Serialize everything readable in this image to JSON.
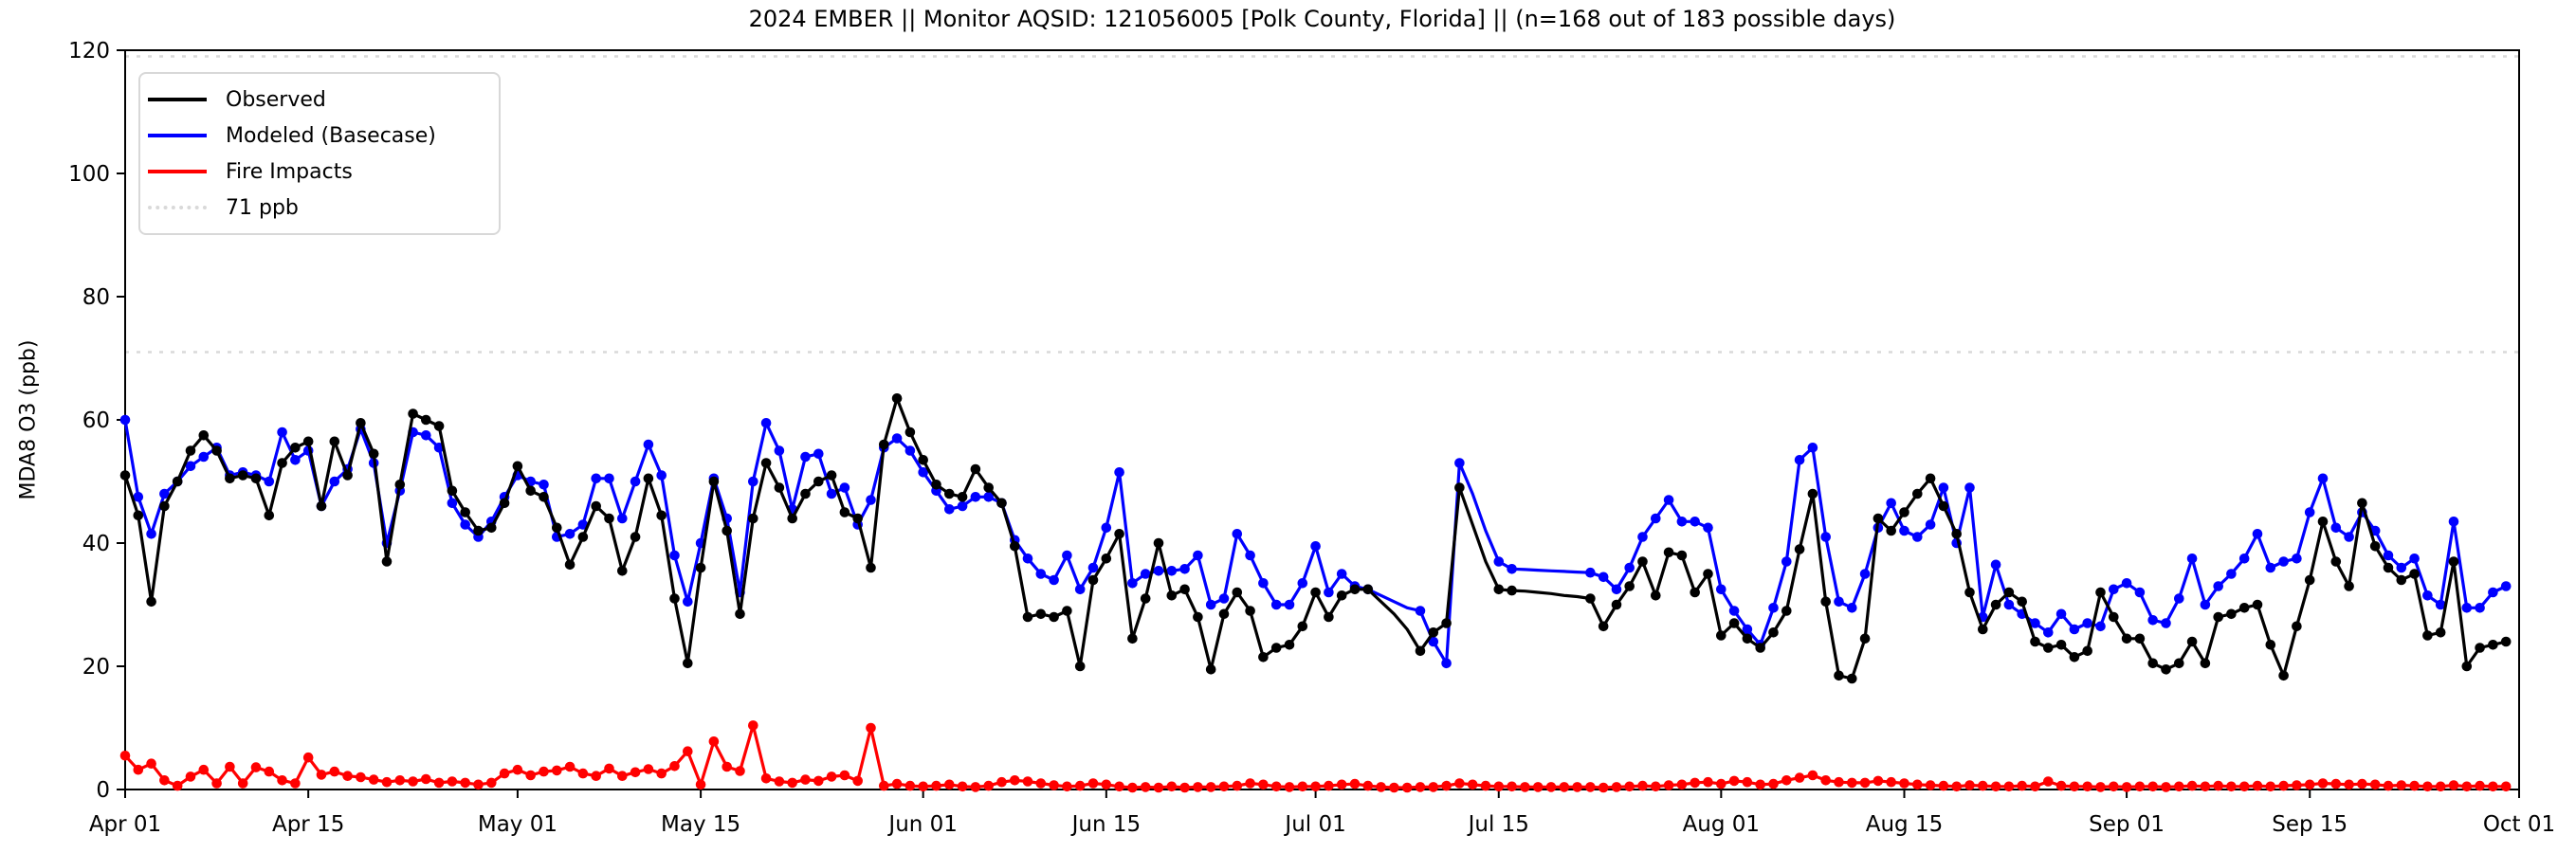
{
  "header": {
    "title": "2024 EMBER || Monitor AQSID: 121056005 [Polk County, Florida] || (n=168 out of 183 possible days)"
  },
  "chart_data": {
    "type": "line",
    "title": "2024 EMBER || Monitor AQSID: 121056005 [Polk County, Florida] || (n=168 out of 183 possible days)",
    "xlabel": "",
    "ylabel": "MDA8 O3 (ppb)",
    "ylim": [
      0,
      120
    ],
    "y_ticks": [
      0,
      20,
      40,
      60,
      80,
      100,
      120
    ],
    "num_days": 183,
    "x_tick_days": [
      0,
      14,
      30,
      44,
      61,
      75,
      91,
      105,
      122,
      136,
      153,
      167,
      183
    ],
    "x_tick_labels": [
      "Apr 01",
      "Apr 15",
      "May 01",
      "May 15",
      "Jun 01",
      "Jun 15",
      "Jul 01",
      "Jul 15",
      "Aug 01",
      "Aug 15",
      "Sep 01",
      "Sep 15",
      "Oct 01"
    ],
    "grid": false,
    "legend_position": "upper left",
    "legend": [
      {
        "label": "Observed",
        "color": "#000000",
        "style": "solid"
      },
      {
        "label": "Modeled (Basecase)",
        "color": "#0000ff",
        "style": "solid"
      },
      {
        "label": "Fire Impacts",
        "color": "#ff0000",
        "style": "solid"
      },
      {
        "label": "71 ppb",
        "color": "#d9d9d9",
        "style": "dotted"
      }
    ],
    "reference_lines": [
      {
        "label": "71 ppb",
        "value": 71,
        "color": "#d9d9d9",
        "style": "dotted"
      },
      {
        "label": "",
        "value": 119,
        "color": "#d9d9d9",
        "style": "dotted"
      }
    ],
    "interpolated_days": [
      96,
      97,
      98,
      103,
      104,
      107,
      108,
      109,
      110,
      111
    ],
    "series": [
      {
        "name": "Observed",
        "color": "#000000",
        "values": [
          51,
          44.5,
          30.5,
          46,
          50,
          55,
          57.5,
          55,
          50.5,
          51,
          50.5,
          44.5,
          53,
          55.5,
          56.5,
          46,
          56.5,
          51,
          59.5,
          54.5,
          37,
          49.5,
          61,
          60,
          59,
          48.5,
          45,
          42,
          42.5,
          46.5,
          52.5,
          48.5,
          47.5,
          42.5,
          36.5,
          41,
          46,
          44,
          35.5,
          41,
          50.5,
          44.5,
          31,
          20.5,
          36,
          50,
          42,
          28.5,
          44,
          53,
          49,
          44,
          48,
          50,
          51,
          45,
          44,
          36,
          56,
          63.5,
          58,
          53.5,
          49.5,
          48,
          47.5,
          52,
          49,
          46.5,
          39.5,
          28,
          28.5,
          28,
          29,
          20,
          34,
          37.5,
          41.5,
          24.5,
          31,
          40,
          31.5,
          32.5,
          28,
          19.5,
          28.5,
          32,
          29,
          21.5,
          23,
          23.5,
          26.5,
          32,
          28,
          31.5,
          32.5,
          32.5,
          30.5,
          28.5,
          26,
          22.5,
          25.5,
          27,
          49,
          43,
          37,
          32.5,
          32.3,
          32.2,
          32,
          31.8,
          31.5,
          31.3,
          31,
          26.5,
          30,
          33,
          37,
          31.5,
          38.5,
          38,
          32,
          35,
          25,
          27,
          24.5,
          23,
          25.5,
          29,
          39,
          48,
          30.5,
          18.5,
          18,
          24.5,
          44,
          42,
          45,
          48,
          50.5,
          46,
          41.5,
          32,
          26,
          30,
          32,
          30.5,
          24,
          23,
          23.5,
          21.5,
          22.5,
          32,
          28,
          24.5,
          24.5,
          20.5,
          19.5,
          20.5,
          24,
          20.5,
          28,
          28.5,
          29.5,
          30,
          23.5,
          18.5,
          26.5,
          34,
          43.5,
          37,
          33,
          46.5,
          39.5,
          36,
          34,
          35,
          25,
          25.5,
          37,
          20,
          23,
          23.5,
          24
        ]
      },
      {
        "name": "Modeled (Basecase)",
        "color": "#0000ff",
        "values": [
          60,
          47.5,
          41.5,
          48,
          50,
          52.5,
          54,
          55.5,
          51,
          51.5,
          51,
          50,
          58,
          53.5,
          55,
          46,
          50,
          52,
          58.5,
          53,
          40,
          48.5,
          58,
          57.5,
          55.5,
          46.5,
          43,
          41,
          43.5,
          47.5,
          51,
          50,
          49.5,
          41,
          41.5,
          43,
          50.5,
          50.5,
          44,
          50,
          56,
          51,
          38,
          30.5,
          40,
          50.5,
          44,
          32,
          50,
          59.5,
          55,
          45.5,
          54,
          54.5,
          48,
          49,
          43,
          47,
          55.5,
          57,
          55,
          51.5,
          48.5,
          45.5,
          46,
          47.5,
          47.5,
          46.5,
          40.5,
          37.5,
          35,
          34,
          38,
          32.5,
          36,
          42.5,
          51.5,
          33.5,
          35,
          35.5,
          35.5,
          35.8,
          38,
          30,
          31,
          41.5,
          38,
          33.5,
          30,
          30,
          33.5,
          39.5,
          32,
          35,
          33,
          32.5,
          31.5,
          30.5,
          29.5,
          29,
          24,
          20.5,
          53,
          48,
          42,
          37,
          35.8,
          35.7,
          35.6,
          35.5,
          35.4,
          35.3,
          35.2,
          34.5,
          32.5,
          36,
          41,
          44,
          47,
          43.5,
          43.5,
          42.5,
          32.5,
          29,
          26,
          23.5,
          29.5,
          37,
          53.5,
          55.5,
          41,
          30.5,
          29.5,
          35,
          42.5,
          46.5,
          42,
          41,
          43,
          49,
          40,
          49,
          28,
          36.5,
          30,
          28.5,
          27,
          25.5,
          28.5,
          26,
          27,
          26.5,
          32.5,
          33.5,
          32,
          27.5,
          27,
          31,
          37.5,
          30,
          33,
          35,
          37.5,
          41.5,
          36,
          37,
          37.5,
          45,
          50.5,
          42.5,
          41,
          45,
          42,
          38,
          36,
          37.5,
          31.5,
          30,
          43.5,
          29.5,
          29.5,
          32,
          33
        ]
      },
      {
        "name": "Fire Impacts",
        "color": "#ff0000",
        "values": [
          5.5,
          3.2,
          4.2,
          1.5,
          0.6,
          2.1,
          3.2,
          1,
          3.7,
          1,
          3.6,
          2.9,
          1.5,
          1,
          5.2,
          2.4,
          2.9,
          2.2,
          2,
          1.6,
          1.2,
          1.5,
          1.3,
          1.7,
          1.1,
          1.3,
          1.1,
          0.8,
          1.1,
          2.6,
          3.2,
          2.3,
          2.9,
          3.1,
          3.7,
          2.6,
          2.2,
          3.4,
          2.2,
          2.8,
          3.3,
          2.6,
          3.8,
          6.2,
          0.8,
          7.8,
          3.7,
          3,
          10.4,
          1.8,
          1.3,
          1.1,
          1.6,
          1.4,
          2.1,
          2.3,
          1.4,
          10,
          0.6,
          0.9,
          0.6,
          0.5,
          0.6,
          0.8,
          0.5,
          0.4,
          0.6,
          1.2,
          1.5,
          1.3,
          1,
          0.7,
          0.5,
          0.6,
          1,
          0.8,
          0.5,
          0.3,
          0.4,
          0.3,
          0.5,
          0.3,
          0.4,
          0.4,
          0.5,
          0.6,
          1,
          0.8,
          0.5,
          0.4,
          0.5,
          0.5,
          0.6,
          0.8,
          0.9,
          0.6,
          0.4,
          0.3,
          0.3,
          0.4,
          0.4,
          0.6,
          1,
          0.8,
          0.6,
          0.5,
          0.5,
          0.4,
          0.4,
          0.4,
          0.4,
          0.4,
          0.4,
          0.3,
          0.4,
          0.5,
          0.6,
          0.5,
          0.7,
          0.8,
          1.1,
          1.2,
          0.9,
          1.4,
          1.2,
          0.8,
          0.9,
          1.5,
          1.9,
          2.3,
          1.5,
          1.2,
          1.1,
          1.1,
          1.4,
          1.2,
          1,
          0.8,
          0.7,
          0.6,
          0.5,
          0.7,
          0.6,
          0.5,
          0.5,
          0.6,
          0.5,
          1.3,
          0.6,
          0.5,
          0.5,
          0.4,
          0.5,
          0.4,
          0.5,
          0.5,
          0.4,
          0.5,
          0.6,
          0.5,
          0.6,
          0.5,
          0.5,
          0.6,
          0.5,
          0.6,
          0.7,
          0.8,
          1,
          0.9,
          0.8,
          0.9,
          0.8,
          0.6,
          0.7,
          0.6,
          0.5,
          0.5,
          0.7,
          0.5,
          0.6,
          0.5,
          0.5
        ]
      }
    ]
  }
}
